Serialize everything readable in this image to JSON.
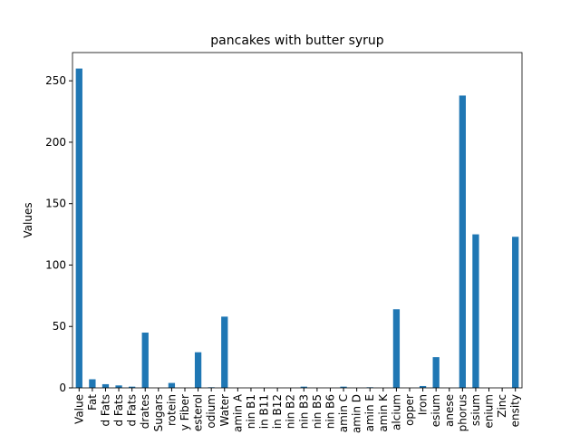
{
  "chart_data": {
    "type": "bar",
    "title": "pancakes with butter syrup",
    "ylabel": "Values",
    "categories": [
      "Value",
      "Fat",
      "d Fats",
      "d Fats",
      "d Fats",
      "drates",
      "Sugars",
      "rotein",
      "y Fiber",
      "esterol",
      "odium",
      "Water",
      "amin A",
      "nin B1",
      "in B11",
      "in B12",
      "nin B2",
      "nin B3",
      "nin B5",
      "nin B6",
      "amin C",
      "amin D",
      "amin E",
      "amin K",
      "alcium",
      "opper",
      "Iron",
      "esium",
      "anese",
      "phorus",
      "ssium",
      "enium",
      "Zinc",
      "ensity"
    ],
    "values": [
      260,
      7,
      3,
      2,
      1,
      45,
      0,
      4,
      0,
      29,
      0.5,
      58,
      0,
      0,
      0,
      0,
      0,
      1,
      0,
      0,
      1,
      0,
      0.5,
      0,
      64,
      0,
      1.5,
      25,
      0,
      238,
      125,
      0,
      0,
      123
    ],
    "color": "#1f77b4",
    "ylim": [
      0,
      273
    ],
    "yticks": [
      0,
      50,
      100,
      150,
      200,
      250
    ]
  }
}
